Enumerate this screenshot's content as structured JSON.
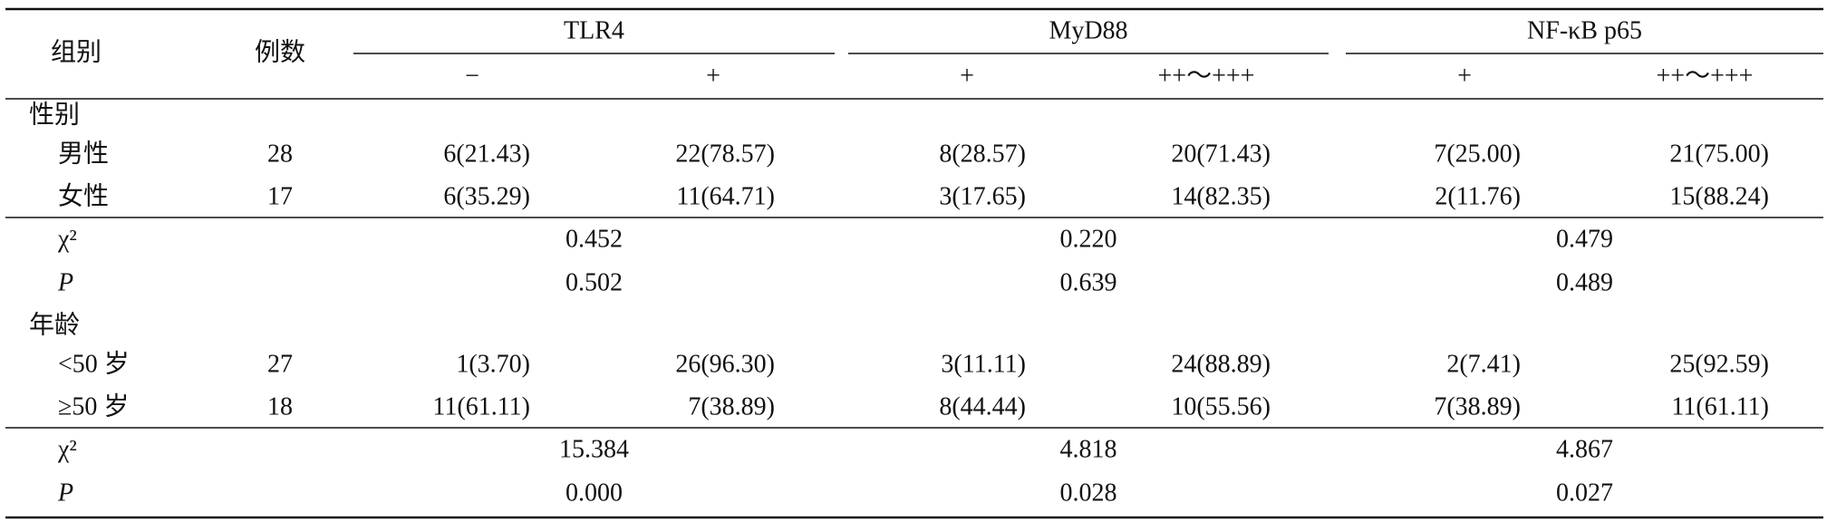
{
  "table": {
    "columns": {
      "group": "组别",
      "count": "例数",
      "markers": [
        {
          "name": "TLR4",
          "levels": [
            "−",
            "+"
          ]
        },
        {
          "name": "MyD88",
          "levels": [
            "+",
            "++～+++"
          ]
        },
        {
          "name": "NF-κB p65",
          "levels": [
            "+",
            "++～+++"
          ]
        }
      ]
    },
    "sections": [
      {
        "title": "性别",
        "rows": [
          {
            "label": "男性",
            "n": "28",
            "cells": [
              "6(21.43)",
              "22(78.57)",
              "8(28.57)",
              "20(71.43)",
              "7(25.00)",
              "21(75.00)"
            ]
          },
          {
            "label": "女性",
            "n": "17",
            "cells": [
              "6(35.29)",
              "11(64.71)",
              "3(17.65)",
              "14(82.35)",
              "2(11.76)",
              "15(88.24)"
            ]
          }
        ],
        "stats": [
          {
            "label": "χ²",
            "values": [
              "0.452",
              "0.220",
              "0.479"
            ]
          },
          {
            "label": "P",
            "values": [
              "0.502",
              "0.639",
              "0.489"
            ]
          }
        ]
      },
      {
        "title": "年龄",
        "rows": [
          {
            "label": "<50 岁",
            "n": "27",
            "cells": [
              "1(3.70)",
              "26(96.30)",
              "3(11.11)",
              "24(88.89)",
              "2(7.41)",
              "25(92.59)"
            ]
          },
          {
            "label": "≥50 岁",
            "n": "18",
            "cells": [
              "11(61.11)",
              "7(38.89)",
              "8(44.44)",
              "10(55.56)",
              "7(38.89)",
              "11(61.11)"
            ]
          }
        ],
        "stats": [
          {
            "label": "χ²",
            "values": [
              "15.384",
              "4.818",
              "4.867"
            ]
          },
          {
            "label": "P",
            "values": [
              "0.000",
              "0.028",
              "0.027"
            ]
          }
        ]
      }
    ]
  }
}
